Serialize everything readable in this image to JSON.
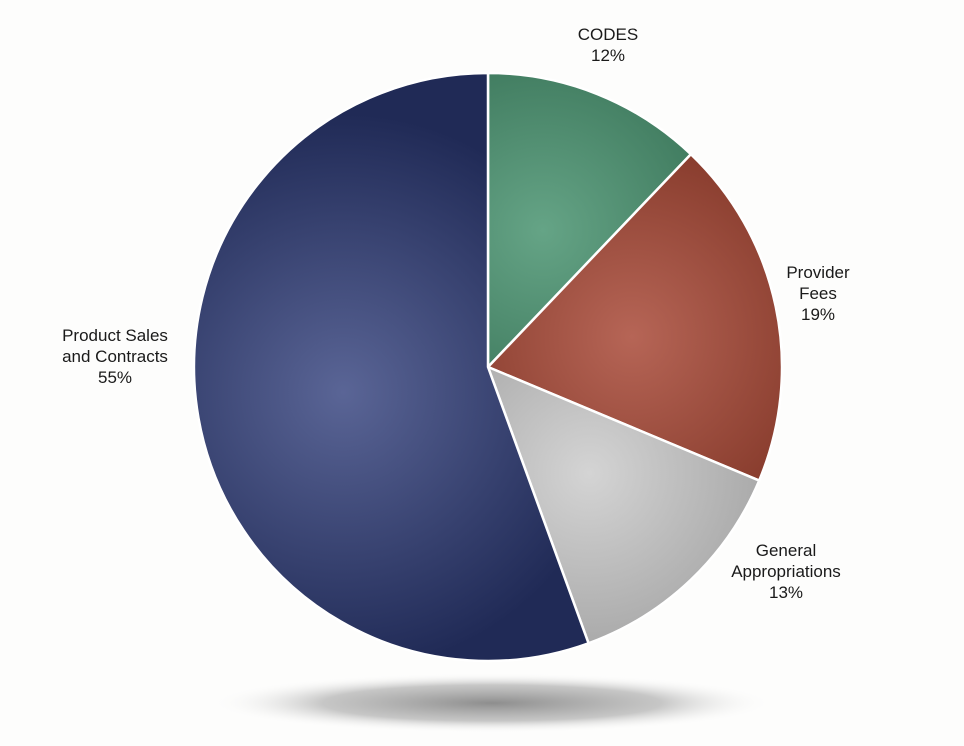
{
  "chart_data": {
    "type": "pie",
    "start_angle_deg": 0,
    "direction": "clockwise",
    "slices": [
      {
        "name": "CODES",
        "label_lines": [
          "CODES"
        ],
        "value": 12,
        "value_label": "12%",
        "color": "#3a8a64"
      },
      {
        "name": "Provider Fees",
        "label_lines": [
          "Provider",
          "Fees"
        ],
        "value": 19,
        "value_label": "19%",
        "color": "#a13a26"
      },
      {
        "name": "General Appropriations",
        "label_lines": [
          "General",
          "Appropriations"
        ],
        "value": 13,
        "value_label": "13%",
        "color": "#c8c8c8"
      },
      {
        "name": "Product Sales and Contracts",
        "label_lines": [
          "Product Sales",
          "and Contracts"
        ],
        "value": 55,
        "value_label": "55%",
        "color": "#2c3a78"
      }
    ]
  }
}
